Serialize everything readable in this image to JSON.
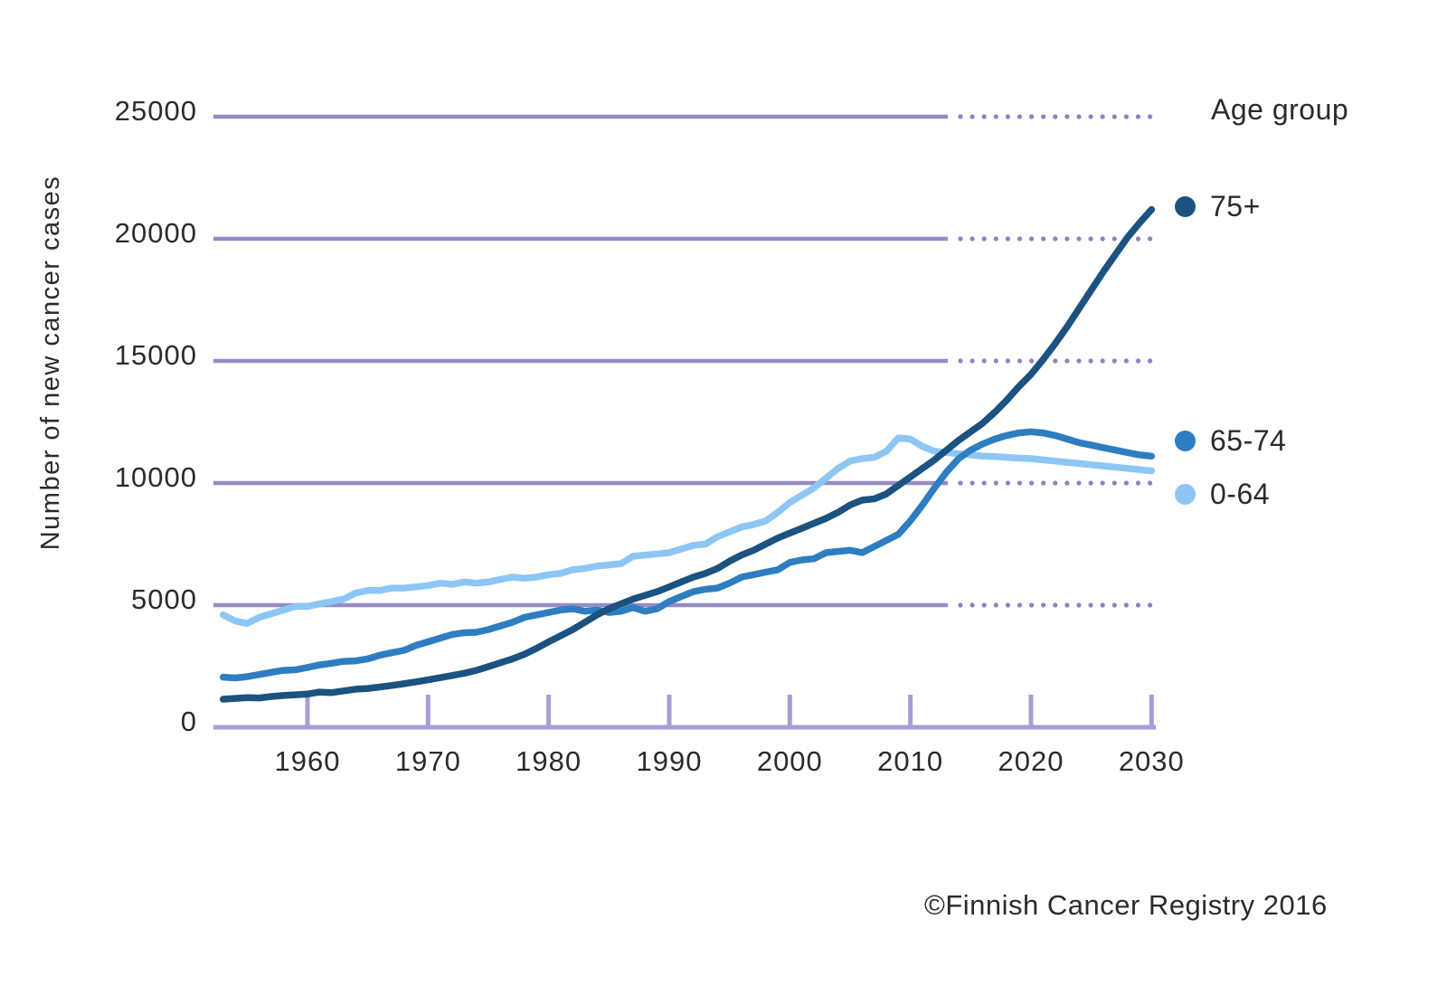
{
  "ylabel": "Number of new cancer cases",
  "legend": {
    "title": "Age group",
    "items": [
      {
        "label": "75+",
        "color": "#1b527f"
      },
      {
        "label": "65-74",
        "color": "#2e7dc1"
      },
      {
        "label": "0-64",
        "color": "#8dc6f5"
      }
    ]
  },
  "footer": {
    "copyright": "©Finnish Cancer Registry 2016"
  },
  "chart_data": {
    "type": "line",
    "title": "",
    "xlabel": "",
    "ylabel": "Number of new cancer cases",
    "xlim": [
      1953,
      2030
    ],
    "ylim": [
      0,
      25000
    ],
    "x_ticks": [
      1960,
      1970,
      1980,
      1990,
      2000,
      2010,
      2020,
      2030
    ],
    "y_ticks": [
      0,
      5000,
      10000,
      15000,
      20000,
      25000
    ],
    "observed_until": 2013,
    "legend_position": "right",
    "grid": {
      "solid_color": "#968bc6",
      "dotted_color": "#8e82c3",
      "axis_color": "#a79cd4"
    },
    "text_color": "#2b2a2d",
    "x": [
      1953,
      1954,
      1955,
      1956,
      1957,
      1958,
      1959,
      1960,
      1961,
      1962,
      1963,
      1964,
      1965,
      1966,
      1967,
      1968,
      1969,
      1970,
      1971,
      1972,
      1973,
      1974,
      1975,
      1976,
      1977,
      1978,
      1979,
      1980,
      1981,
      1982,
      1983,
      1984,
      1985,
      1986,
      1987,
      1988,
      1989,
      1990,
      1991,
      1992,
      1993,
      1994,
      1995,
      1996,
      1997,
      1998,
      1999,
      2000,
      2001,
      2002,
      2003,
      2004,
      2005,
      2006,
      2007,
      2008,
      2009,
      2010,
      2011,
      2012,
      2013,
      2014,
      2015,
      2016,
      2017,
      2018,
      2019,
      2020,
      2021,
      2022,
      2023,
      2024,
      2025,
      2026,
      2027,
      2028,
      2029,
      2030
    ],
    "series": [
      {
        "name": "75+",
        "color": "#1b527f",
        "values": [
          1150,
          1180,
          1210,
          1200,
          1260,
          1300,
          1330,
          1360,
          1440,
          1420,
          1490,
          1560,
          1590,
          1650,
          1710,
          1780,
          1860,
          1940,
          2030,
          2120,
          2210,
          2330,
          2480,
          2640,
          2800,
          2990,
          3230,
          3500,
          3750,
          4000,
          4300,
          4600,
          4850,
          5050,
          5250,
          5400,
          5550,
          5750,
          5950,
          6150,
          6300,
          6500,
          6800,
          7050,
          7250,
          7500,
          7750,
          7950,
          8150,
          8350,
          8550,
          8800,
          9100,
          9300,
          9350,
          9550,
          9900,
          10250,
          10600,
          10950,
          11350,
          11750,
          12100,
          12450,
          12900,
          13400,
          13950,
          14450,
          15050,
          15700,
          16400,
          17150,
          17900,
          18650,
          19350,
          20050,
          20650,
          21200
        ]
      },
      {
        "name": "65-74",
        "color": "#2e7dc1",
        "values": [
          2050,
          2020,
          2070,
          2160,
          2250,
          2330,
          2350,
          2450,
          2550,
          2620,
          2700,
          2720,
          2800,
          2950,
          3050,
          3150,
          3350,
          3500,
          3650,
          3800,
          3870,
          3890,
          4000,
          4150,
          4300,
          4500,
          4600,
          4700,
          4800,
          4850,
          4750,
          4800,
          4700,
          4750,
          4900,
          4750,
          4850,
          5150,
          5350,
          5550,
          5650,
          5700,
          5900,
          6150,
          6250,
          6350,
          6450,
          6750,
          6850,
          6900,
          7150,
          7200,
          7250,
          7150,
          7400,
          7650,
          7900,
          8450,
          9100,
          9800,
          10450,
          11000,
          11350,
          11600,
          11800,
          11950,
          12050,
          12100,
          12050,
          11950,
          11800,
          11650,
          11550,
          11450,
          11350,
          11250,
          11150,
          11100
        ]
      },
      {
        "name": "0-64",
        "color": "#8dc6f5",
        "values": [
          4600,
          4350,
          4250,
          4500,
          4650,
          4800,
          4950,
          4950,
          5050,
          5150,
          5250,
          5500,
          5600,
          5600,
          5700,
          5700,
          5750,
          5800,
          5900,
          5850,
          5950,
          5900,
          5950,
          6050,
          6150,
          6100,
          6150,
          6250,
          6300,
          6450,
          6500,
          6600,
          6650,
          6700,
          7000,
          7050,
          7100,
          7150,
          7300,
          7450,
          7500,
          7800,
          8000,
          8200,
          8300,
          8450,
          8800,
          9200,
          9500,
          9800,
          10200,
          10600,
          10900,
          11000,
          11050,
          11300,
          11850,
          11800,
          11500,
          11300,
          11250,
          11200,
          11150,
          11100,
          11080,
          11050,
          11020,
          11000,
          10950,
          10900,
          10850,
          10800,
          10750,
          10700,
          10650,
          10600,
          10550,
          10500
        ]
      }
    ]
  }
}
